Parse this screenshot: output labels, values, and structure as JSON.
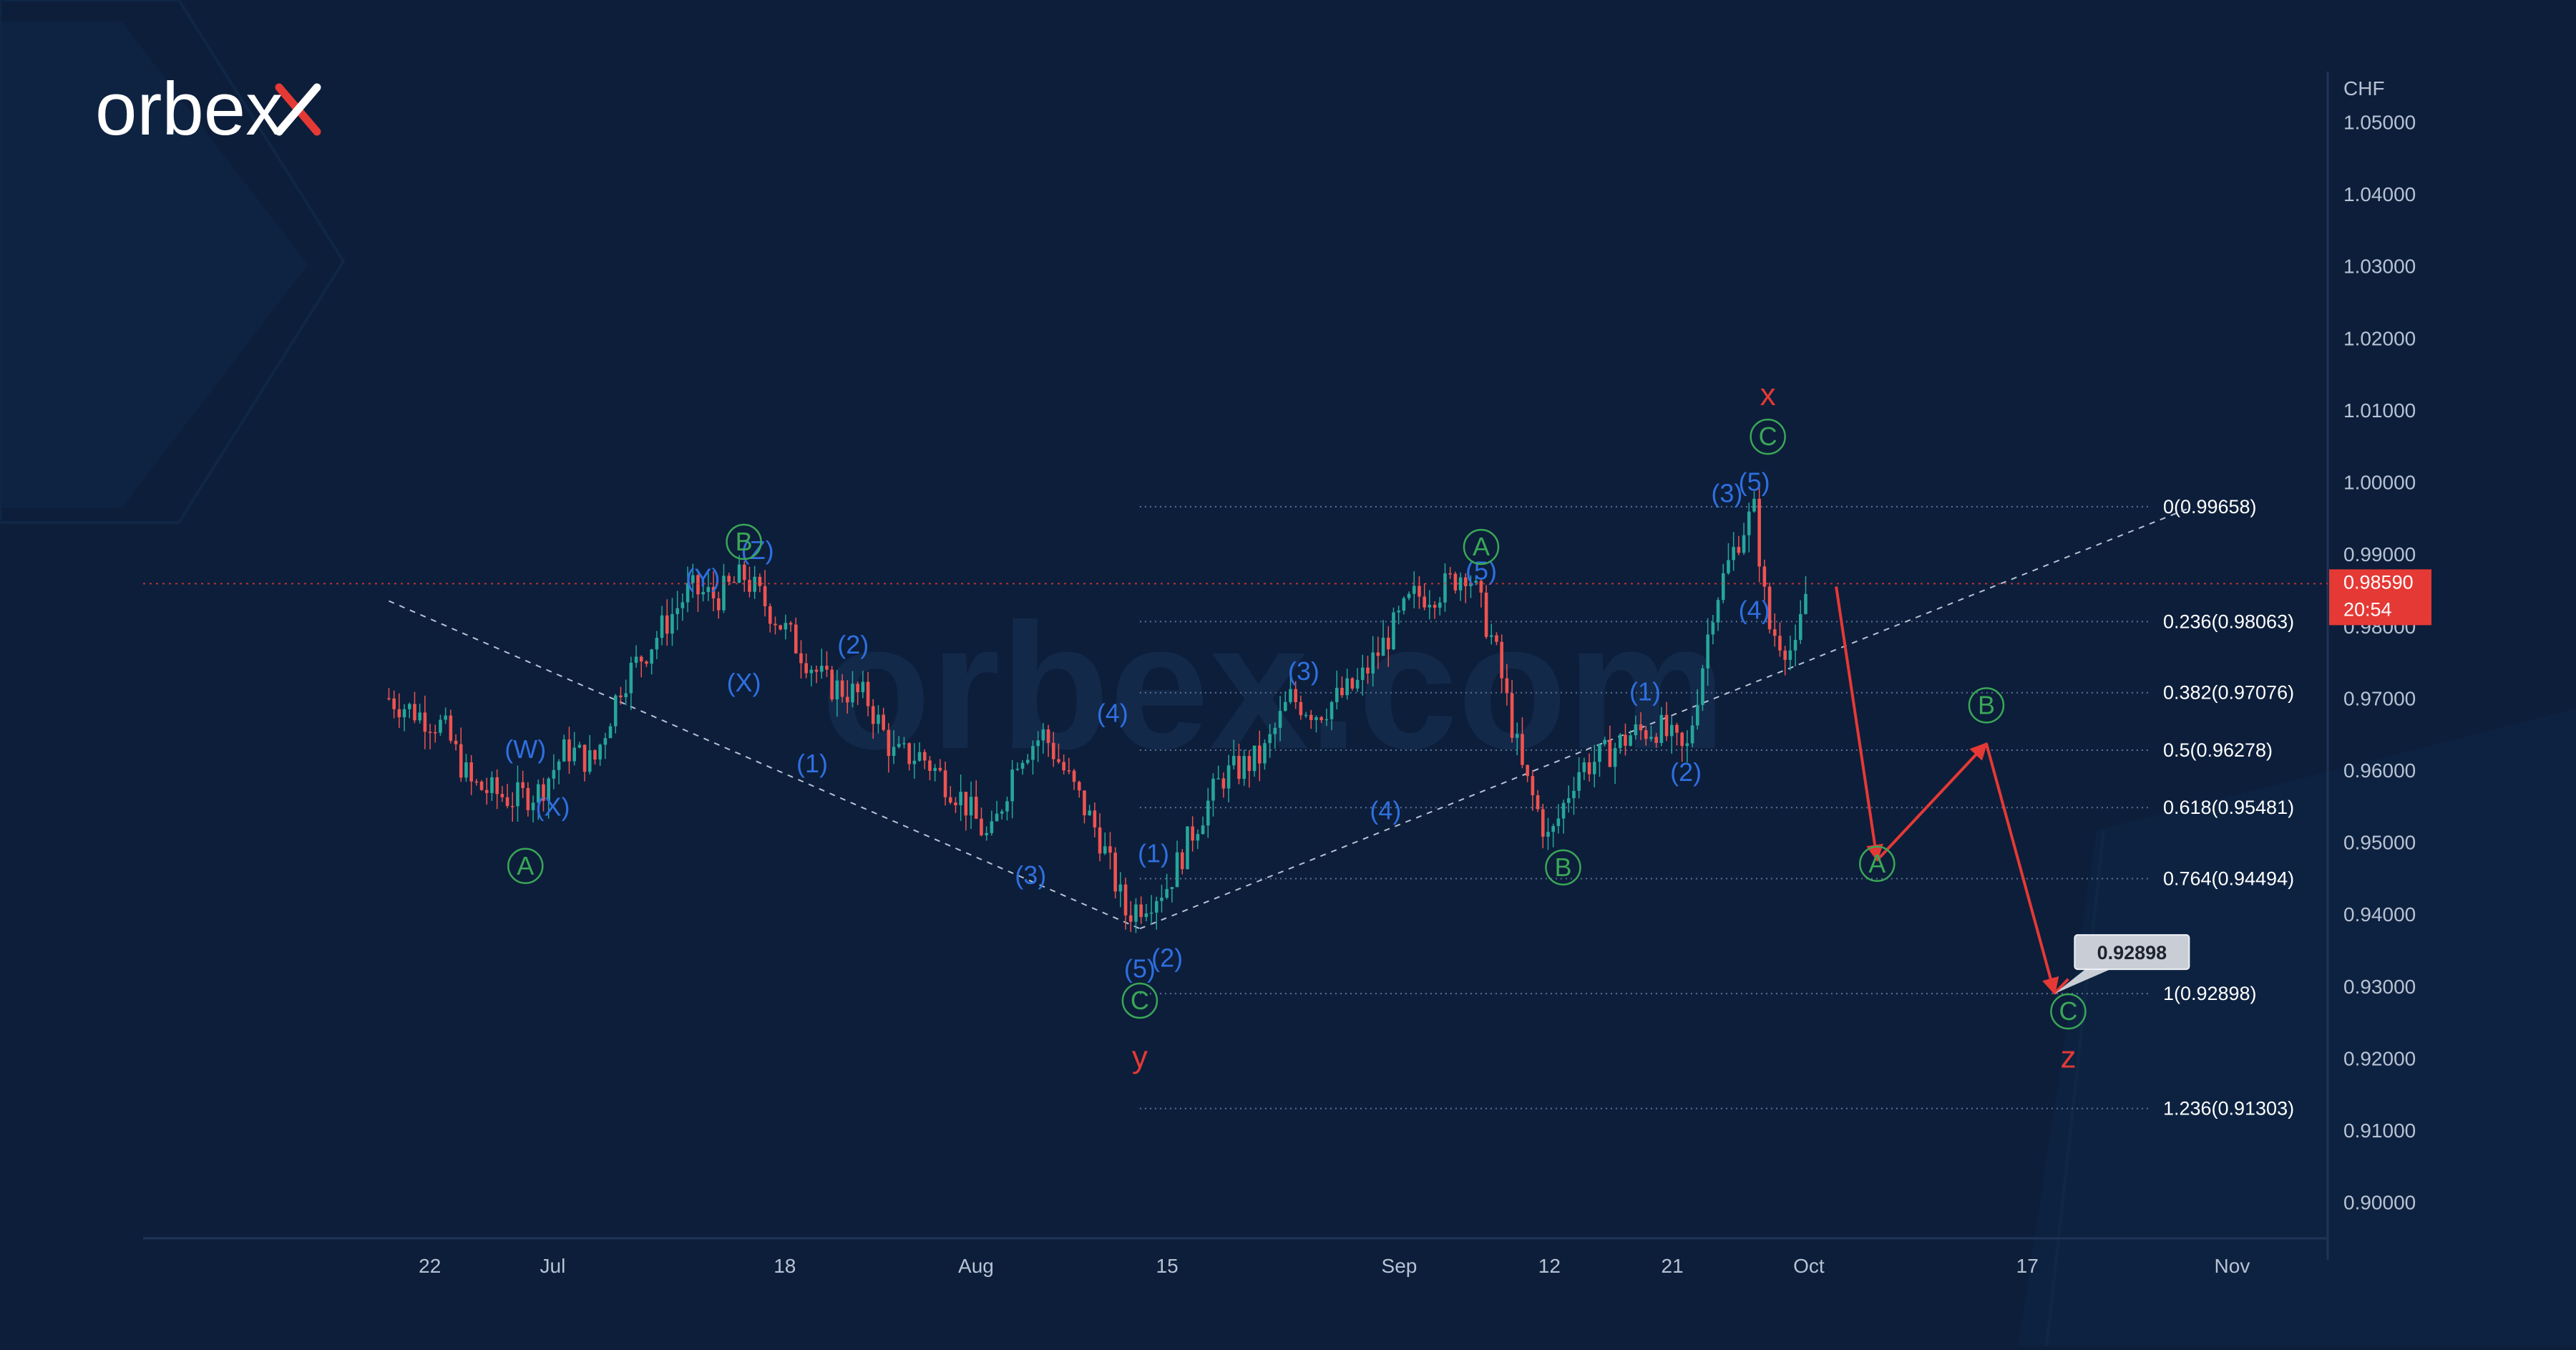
{
  "brand": {
    "logo_text": "orbex",
    "watermark_text": "orbex.com"
  },
  "colors": {
    "background": "#0c1e3a",
    "wave_blue": "#2f6fe0",
    "wave_green": "#3aa757",
    "wave_red": "#e53935",
    "price_marker": "#e53935",
    "candle_up": "#26a69a",
    "candle_down": "#ef5350"
  },
  "chart_data": {
    "type": "line",
    "title": "",
    "ylabel": "CHF",
    "xlabel": "",
    "ylim": [
      0.895,
      1.057
    ],
    "grid": false,
    "y_ticks": [
      "0.90000",
      "0.91000",
      "0.92000",
      "0.93000",
      "0.94000",
      "0.95000",
      "0.96000",
      "0.97000",
      "0.98000",
      "0.99000",
      "1.00000",
      "1.01000",
      "1.02000",
      "1.03000",
      "1.04000",
      "1.05000"
    ],
    "x_ticks": [
      {
        "label": "22",
        "date": "2022-06-22"
      },
      {
        "label": "Jul",
        "date": "2022-07-01"
      },
      {
        "label": "18",
        "date": "2022-07-18"
      },
      {
        "label": "Aug",
        "date": "2022-08-01"
      },
      {
        "label": "15",
        "date": "2022-08-15"
      },
      {
        "label": "Sep",
        "date": "2022-09-01"
      },
      {
        "label": "12",
        "date": "2022-09-12"
      },
      {
        "label": "21",
        "date": "2022-09-21"
      },
      {
        "label": "Oct",
        "date": "2022-10-01"
      },
      {
        "label": "17",
        "date": "2022-10-17"
      },
      {
        "label": "Nov",
        "date": "2022-11-01"
      }
    ],
    "current_price": {
      "value": "0.98590",
      "countdown": "20:54",
      "y": 0.9859
    },
    "target_label": {
      "value": "0.92898",
      "y": 0.92898
    },
    "series": [
      {
        "x": [
          "2022-06-19",
          "2022-06-23",
          "2022-06-25",
          "2022-06-28",
          "2022-06-30",
          "2022-07-02",
          "2022-07-04",
          "2022-07-06",
          "2022-07-08",
          "2022-07-11",
          "2022-07-13",
          "2022-07-15",
          "2022-07-17",
          "2022-07-19",
          "2022-07-21",
          "2022-07-24",
          "2022-07-26",
          "2022-07-28",
          "2022-07-31",
          "2022-08-02",
          "2022-08-04",
          "2022-08-06",
          "2022-08-08",
          "2022-08-10",
          "2022-08-12",
          "2022-08-15",
          "2022-08-17",
          "2022-08-19",
          "2022-08-22",
          "2022-08-24",
          "2022-08-26",
          "2022-08-29",
          "2022-08-31",
          "2022-09-02",
          "2022-09-04",
          "2022-09-06",
          "2022-09-08",
          "2022-09-10",
          "2022-09-12",
          "2022-09-14",
          "2022-09-16",
          "2022-09-18",
          "2022-09-20",
          "2022-09-22",
          "2022-09-24",
          "2022-09-26",
          "2022-09-27",
          "2022-09-28",
          "2022-09-30",
          "2022-10-01"
        ],
        "y": [
          0.97,
          0.966,
          0.958,
          0.956,
          0.957,
          0.963,
          0.961,
          0.972,
          0.977,
          0.985,
          0.984,
          0.987,
          0.982,
          0.977,
          0.972,
          0.97,
          0.962,
          0.962,
          0.956,
          0.95,
          0.962,
          0.965,
          0.958,
          0.951,
          0.94,
          0.944,
          0.952,
          0.959,
          0.962,
          0.97,
          0.968,
          0.972,
          0.978,
          0.984,
          0.985,
          0.988,
          0.977,
          0.96,
          0.95,
          0.96,
          0.962,
          0.965,
          0.966,
          0.962,
          0.983,
          0.993,
          0.996,
          0.98,
          0.976,
          0.987
        ]
      }
    ],
    "fibonacci": [
      {
        "label": "0(0.99658)",
        "value": 0.99658
      },
      {
        "label": "0.236(0.98063)",
        "value": 0.98063
      },
      {
        "label": "0.382(0.97076)",
        "value": 0.97076
      },
      {
        "label": "0.5(0.96278)",
        "value": 0.96278
      },
      {
        "label": "0.618(0.95481)",
        "value": 0.95481
      },
      {
        "label": "0.764(0.94494)",
        "value": 0.94494
      },
      {
        "label": "1(0.92898)",
        "value": 0.92898
      },
      {
        "label": "1.236(0.91303)",
        "value": 0.91303
      }
    ],
    "trend_lines": [
      {
        "from": {
          "x": "2022-06-19",
          "y": 0.9835
        },
        "to": {
          "x": "2022-08-13",
          "y": 0.938
        }
      },
      {
        "from": {
          "x": "2022-08-13",
          "y": 0.938
        },
        "to": {
          "x": "2022-10-29",
          "y": 0.9965
        }
      }
    ],
    "forecast_path": [
      {
        "x": "2022-10-03",
        "y": 0.9855
      },
      {
        "x": "2022-10-06",
        "y": 0.9475
      },
      {
        "x": "2022-10-14",
        "y": 0.9637
      },
      {
        "x": "2022-10-19",
        "y": 0.929
      },
      {
        "x": "2022-10-20",
        "y": 0.931
      }
    ],
    "wave_labels": [
      {
        "text": "(W)",
        "color": "blue",
        "x": "2022-06-29",
        "y": 0.963
      },
      {
        "text": "(X)",
        "color": "blue",
        "x": "2022-07-01",
        "y": 0.955
      },
      {
        "text": "(Y)",
        "color": "blue",
        "x": "2022-07-12",
        "y": 0.9868
      },
      {
        "text": "(Z)",
        "color": "blue",
        "x": "2022-07-16",
        "y": 0.9906
      },
      {
        "text": "(X)",
        "color": "blue",
        "x": "2022-07-15",
        "y": 0.9722
      },
      {
        "text": "(2)",
        "color": "blue",
        "x": "2022-07-23",
        "y": 0.9775
      },
      {
        "text": "(1)",
        "color": "blue",
        "x": "2022-07-20",
        "y": 0.961
      },
      {
        "text": "(3)",
        "color": "blue",
        "x": "2022-08-05",
        "y": 0.9455
      },
      {
        "text": "(4)",
        "color": "blue",
        "x": "2022-08-11",
        "y": 0.968
      },
      {
        "text": "(5)",
        "color": "blue",
        "x": "2022-08-13",
        "y": 0.9325
      },
      {
        "text": "(1)",
        "color": "blue",
        "x": "2022-08-14",
        "y": 0.9485
      },
      {
        "text": "(2)",
        "color": "blue",
        "x": "2022-08-15",
        "y": 0.934
      },
      {
        "text": "(3)",
        "color": "blue",
        "x": "2022-08-25",
        "y": 0.9738
      },
      {
        "text": "(4)",
        "color": "blue",
        "x": "2022-08-31",
        "y": 0.9545
      },
      {
        "text": "(5)",
        "color": "blue",
        "x": "2022-09-07",
        "y": 0.9878
      },
      {
        "text": "(1)",
        "color": "blue",
        "x": "2022-09-19",
        "y": 0.971
      },
      {
        "text": "(2)",
        "color": "blue",
        "x": "2022-09-22",
        "y": 0.9598
      },
      {
        "text": "(3)",
        "color": "blue",
        "x": "2022-09-25",
        "y": 0.9985
      },
      {
        "text": "(5)",
        "color": "blue",
        "x": "2022-09-27",
        "y": 1.0001
      },
      {
        "text": "(4)",
        "color": "blue",
        "x": "2022-09-27",
        "y": 0.9823
      },
      {
        "text": "A",
        "color": "green",
        "circled": true,
        "x": "2022-06-29",
        "y": 0.9467
      },
      {
        "text": "B",
        "color": "green",
        "circled": true,
        "x": "2022-07-15",
        "y": 0.9917
      },
      {
        "text": "C",
        "color": "green",
        "circled": true,
        "x": "2022-08-13",
        "y": 0.928
      },
      {
        "text": "A",
        "color": "green",
        "circled": true,
        "x": "2022-09-07",
        "y": 0.991
      },
      {
        "text": "B",
        "color": "green",
        "circled": true,
        "x": "2022-09-13",
        "y": 0.9465
      },
      {
        "text": "C",
        "color": "green",
        "circled": true,
        "x": "2022-09-28",
        "y": 1.0063
      },
      {
        "text": "A",
        "color": "green",
        "circled": true,
        "x": "2022-10-06",
        "y": 0.947
      },
      {
        "text": "B",
        "color": "green",
        "circled": true,
        "x": "2022-10-14",
        "y": 0.969
      },
      {
        "text": "C",
        "color": "green",
        "circled": true,
        "x": "2022-10-20",
        "y": 0.9265
      },
      {
        "text": "x",
        "color": "red",
        "x": "2022-09-28",
        "y": 1.012
      },
      {
        "text": "y",
        "color": "red",
        "x": "2022-08-13",
        "y": 0.92
      },
      {
        "text": "z",
        "color": "red",
        "x": "2022-10-20",
        "y": 0.92
      }
    ]
  }
}
